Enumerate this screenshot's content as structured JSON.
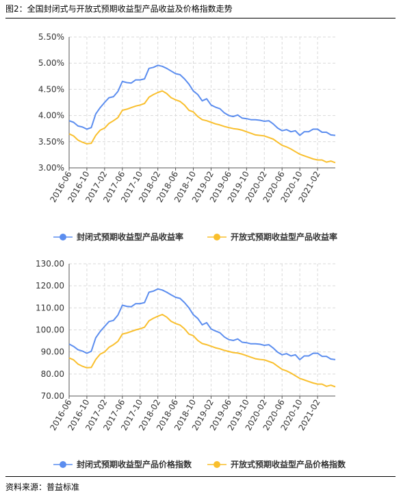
{
  "figure": {
    "title": "图2：全国封闭式与开放式预期收益型产品收益及价格指数走势",
    "source": "资料来源：普益标准"
  },
  "colors": {
    "closed": "#5B8DEF",
    "open": "#F9BF2D",
    "grid": "#D9D9D9",
    "axis": "#555555"
  },
  "chart_data": [
    {
      "type": "line",
      "title": "",
      "xlabel": "",
      "ylabel": "",
      "ylim": [
        0.03,
        0.055
      ],
      "y_ticks": [
        "5.50%",
        "5.00%",
        "4.50%",
        "4.00%",
        "3.50%",
        "3.00%"
      ],
      "y_tick_values": [
        0.055,
        0.05,
        0.045,
        0.04,
        0.035,
        0.03
      ],
      "x_tick_labels": [
        "2016-06",
        "2016-10",
        "2017-02",
        "2017-06",
        "2017-10",
        "2018-02",
        "2018-06",
        "2018-10",
        "2019-02",
        "2019-06",
        "2019-10",
        "2020-02",
        "2020-06",
        "2020-10",
        "2021-02"
      ],
      "x_start": "2016-06",
      "grid": true,
      "legend_position": "bottom",
      "series": [
        {
          "name": "封闭式预期收益型产品收益率",
          "values": [
            0.039,
            0.0387,
            0.038,
            0.0378,
            0.0374,
            0.0377,
            0.0403,
            0.0415,
            0.0425,
            0.0434,
            0.0436,
            0.0446,
            0.0465,
            0.0463,
            0.0462,
            0.0468,
            0.0468,
            0.047,
            0.049,
            0.0492,
            0.0496,
            0.0494,
            0.049,
            0.0485,
            0.048,
            0.0478,
            0.047,
            0.046,
            0.0447,
            0.044,
            0.0428,
            0.0432,
            0.042,
            0.0416,
            0.0413,
            0.0405,
            0.04,
            0.0398,
            0.0401,
            0.0395,
            0.0394,
            0.0392,
            0.0392,
            0.0391,
            0.0389,
            0.039,
            0.0384,
            0.0376,
            0.0371,
            0.0373,
            0.0369,
            0.0371,
            0.0362,
            0.0369,
            0.0369,
            0.0374,
            0.0374,
            0.0368,
            0.0368,
            0.0363,
            0.0362
          ]
        },
        {
          "name": "开放式预期收益型产品收益率",
          "values": [
            0.0365,
            0.0361,
            0.0353,
            0.0349,
            0.0346,
            0.0347,
            0.0362,
            0.0372,
            0.0376,
            0.0385,
            0.039,
            0.0396,
            0.041,
            0.0412,
            0.0415,
            0.0418,
            0.042,
            0.0423,
            0.0435,
            0.044,
            0.0444,
            0.0447,
            0.0442,
            0.0434,
            0.043,
            0.0427,
            0.042,
            0.041,
            0.0407,
            0.0398,
            0.0392,
            0.039,
            0.0387,
            0.0384,
            0.0382,
            0.0379,
            0.0377,
            0.0375,
            0.0374,
            0.0372,
            0.0369,
            0.0366,
            0.0363,
            0.0362,
            0.0361,
            0.0358,
            0.0355,
            0.0349,
            0.0343,
            0.034,
            0.0336,
            0.0331,
            0.0326,
            0.0323,
            0.032,
            0.0317,
            0.0315,
            0.0315,
            0.0311,
            0.0313,
            0.031
          ]
        }
      ]
    },
    {
      "type": "line",
      "title": "",
      "xlabel": "",
      "ylabel": "",
      "ylim": [
        70,
        130
      ],
      "y_ticks": [
        "130.00",
        "120.00",
        "110.00",
        "100.00",
        "90.00",
        "80.00",
        "70.00"
      ],
      "y_tick_values": [
        130,
        120,
        110,
        100,
        90,
        80,
        70
      ],
      "x_tick_labels": [
        "2016-06",
        "2016-10",
        "2017-02",
        "2017-06",
        "2017-10",
        "2018-02",
        "2018-06",
        "2018-10",
        "2019-02",
        "2019-06",
        "2019-10",
        "2020-02",
        "2020-06",
        "2020-10",
        "2021-02"
      ],
      "x_start": "2016-06",
      "grid": true,
      "legend_position": "bottom",
      "series": [
        {
          "name": "封闭式预期收益型产品价格指数",
          "values": [
            93.6,
            92.5,
            91.0,
            90.4,
            89.4,
            90.3,
            96.4,
            99.3,
            101.6,
            103.8,
            104.3,
            106.7,
            111.2,
            110.7,
            110.5,
            111.9,
            111.9,
            112.4,
            117.1,
            117.6,
            118.6,
            118.1,
            117.1,
            115.9,
            114.8,
            114.3,
            112.4,
            110.0,
            106.9,
            105.2,
            102.3,
            103.3,
            100.4,
            99.5,
            98.7,
            96.8,
            95.6,
            95.2,
            95.9,
            94.4,
            94.2,
            93.7,
            93.7,
            93.5,
            93.0,
            93.3,
            91.8,
            89.9,
            88.7,
            89.2,
            88.2,
            88.7,
            86.5,
            88.2,
            88.2,
            89.4,
            89.4,
            88.0,
            88.0,
            86.8,
            86.5
          ]
        },
        {
          "name": "开放式预期收益型产品价格指数",
          "values": [
            87.3,
            86.4,
            84.5,
            83.5,
            82.8,
            83.0,
            86.6,
            89.0,
            90.0,
            92.1,
            93.3,
            94.8,
            98.1,
            98.6,
            99.3,
            100.0,
            100.5,
            101.2,
            104.1,
            105.3,
            106.2,
            107.0,
            105.8,
            103.9,
            102.9,
            102.2,
            100.5,
            98.1,
            97.4,
            95.2,
            93.8,
            93.3,
            92.6,
            91.9,
            91.4,
            90.7,
            90.2,
            89.7,
            89.5,
            89.0,
            88.3,
            87.6,
            86.9,
            86.6,
            86.4,
            85.7,
            85.0,
            83.5,
            82.1,
            81.4,
            80.4,
            79.2,
            78.0,
            77.3,
            76.6,
            75.9,
            75.4,
            75.4,
            74.4,
            74.9,
            74.2
          ]
        }
      ]
    }
  ]
}
